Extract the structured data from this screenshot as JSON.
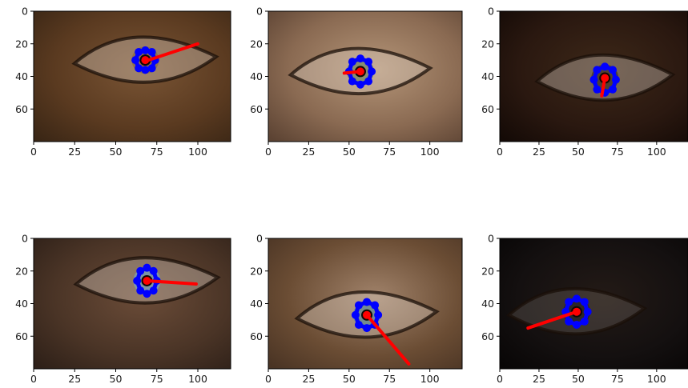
{
  "chart_data": [
    {
      "type": "scatter",
      "image_extent": [
        120,
        80
      ],
      "xlim": [
        0,
        120
      ],
      "ylim": [
        80,
        0
      ],
      "xticks": [
        0,
        25,
        50,
        75,
        100
      ],
      "yticks": [
        0,
        20,
        40,
        60
      ],
      "pupil": [
        68,
        30
      ],
      "landmarks": [
        [
          68,
          24
        ],
        [
          72,
          25
        ],
        [
          74,
          30
        ],
        [
          72,
          35
        ],
        [
          68,
          36
        ],
        [
          64,
          35
        ],
        [
          62,
          30
        ],
        [
          64,
          25
        ]
      ],
      "gaze": {
        "x0": 70,
        "y0": 30,
        "x1": 100,
        "y1": 20
      }
    },
    {
      "type": "scatter",
      "image_extent": [
        120,
        80
      ],
      "xlim": [
        0,
        120
      ],
      "ylim": [
        80,
        0
      ],
      "xticks": [
        0,
        25,
        50,
        75,
        100
      ],
      "yticks": [
        0,
        20,
        40,
        60
      ],
      "pupil": [
        57,
        37
      ],
      "landmarks": [
        [
          57,
          29
        ],
        [
          62,
          31
        ],
        [
          64,
          37
        ],
        [
          62,
          43
        ],
        [
          57,
          45
        ],
        [
          52,
          43
        ],
        [
          50,
          37
        ],
        [
          52,
          31
        ]
      ],
      "gaze": {
        "x0": 57,
        "y0": 37,
        "x1": 47,
        "y1": 38
      }
    },
    {
      "type": "scatter",
      "image_extent": [
        120,
        80
      ],
      "xlim": [
        0,
        120
      ],
      "ylim": [
        80,
        0
      ],
      "xticks": [
        0,
        25,
        50,
        75,
        100
      ],
      "yticks": [
        0,
        20,
        40,
        60
      ],
      "pupil": [
        67,
        41
      ],
      "landmarks": [
        [
          67,
          34
        ],
        [
          72,
          36
        ],
        [
          74,
          42
        ],
        [
          72,
          48
        ],
        [
          67,
          50
        ],
        [
          62,
          48
        ],
        [
          60,
          42
        ],
        [
          62,
          36
        ]
      ],
      "gaze": {
        "x0": 67,
        "y0": 41,
        "x1": 65,
        "y1": 52
      }
    },
    {
      "type": "scatter",
      "image_extent": [
        120,
        80
      ],
      "xlim": [
        0,
        120
      ],
      "ylim": [
        80,
        0
      ],
      "xticks": [
        0,
        25,
        50,
        75,
        100
      ],
      "yticks": [
        0,
        20,
        40,
        60
      ],
      "pupil": [
        69,
        26
      ],
      "landmarks": [
        [
          69,
          18
        ],
        [
          73,
          20
        ],
        [
          75,
          26
        ],
        [
          73,
          32
        ],
        [
          69,
          34
        ],
        [
          65,
          32
        ],
        [
          63,
          26
        ],
        [
          65,
          20
        ]
      ],
      "gaze": {
        "x0": 69,
        "y0": 26,
        "x1": 99,
        "y1": 28
      }
    },
    {
      "type": "scatter",
      "image_extent": [
        120,
        80
      ],
      "xlim": [
        0,
        120
      ],
      "ylim": [
        80,
        0
      ],
      "xticks": [
        0,
        25,
        50,
        75,
        100
      ],
      "yticks": [
        0,
        20,
        40,
        60
      ],
      "pupil": [
        61,
        47
      ],
      "landmarks": [
        [
          61,
          39
        ],
        [
          66,
          41
        ],
        [
          68,
          47
        ],
        [
          66,
          53
        ],
        [
          61,
          55
        ],
        [
          56,
          53
        ],
        [
          54,
          47
        ],
        [
          56,
          41
        ]
      ],
      "gaze": {
        "x0": 61,
        "y0": 47,
        "x1": 87,
        "y1": 77
      }
    },
    {
      "type": "scatter",
      "image_extent": [
        120,
        80
      ],
      "xlim": [
        0,
        120
      ],
      "ylim": [
        80,
        0
      ],
      "xticks": [
        0,
        25,
        50,
        75,
        100
      ],
      "yticks": [
        0,
        20,
        40,
        60
      ],
      "pupil": [
        49,
        45
      ],
      "landmarks": [
        [
          49,
          37
        ],
        [
          54,
          39
        ],
        [
          56,
          45
        ],
        [
          54,
          51
        ],
        [
          49,
          53
        ],
        [
          44,
          51
        ],
        [
          42,
          45
        ],
        [
          44,
          39
        ]
      ],
      "gaze": {
        "x0": 49,
        "y0": 45,
        "x1": 18,
        "y1": 55
      }
    }
  ],
  "style": {
    "landmark_color": "#0000ff",
    "pupil_color": "#ff0000",
    "gaze_color": "#ff0000",
    "panel_backgrounds": [
      [
        "#5a3a20",
        "#7a5535",
        "#3a2615"
      ],
      [
        "#8a6a52",
        "#b49578",
        "#5c4333"
      ],
      [
        "#2a1810",
        "#3d2818",
        "#140a06"
      ],
      [
        "#4a3426",
        "#6b4c38",
        "#2e2018"
      ],
      [
        "#6b4d34",
        "#a0826a",
        "#4a3424"
      ],
      [
        "#141010",
        "#231a16",
        "#080606"
      ]
    ],
    "eye_colors": [
      "#8a6d45",
      "#7d8a6a",
      "#4a3a2a",
      "#7a9ab0",
      "#6a8a90",
      "#2a2424"
    ]
  }
}
